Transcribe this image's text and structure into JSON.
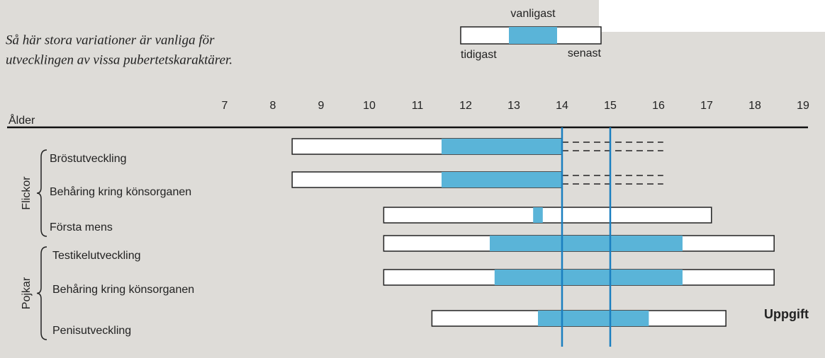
{
  "chart_data": {
    "type": "range",
    "title_lines": [
      "Så här stora variationer är vanliga för",
      "utvecklingen av vissa pubertetskaraktärer."
    ],
    "legend": {
      "common": "vanligast",
      "early": "tidigast",
      "late": "senast"
    },
    "x_label": "Ålder",
    "xlim": [
      7,
      19
    ],
    "xticks": [
      7,
      8,
      9,
      10,
      11,
      12,
      13,
      14,
      15,
      16,
      17,
      18,
      19
    ],
    "reference_lines": [
      14,
      15
    ],
    "common_color": "#5ab4d8",
    "line_color": "#1a7fc0",
    "groups": [
      {
        "name": "Flickor",
        "categories": [
          {
            "name": "Bröstutveckling",
            "earliest": 8.4,
            "common_start": 11.5,
            "common_end": 14,
            "latest": 14,
            "dashed_end": 16.1
          },
          {
            "name": "Behåring kring könsorganen",
            "earliest": 8.4,
            "common_start": 11.5,
            "common_end": 14,
            "latest": 14,
            "dashed_end": 16.1
          },
          {
            "name": "Första mens",
            "earliest": 10.3,
            "common_start": 13.4,
            "common_end": 13.6,
            "latest": 17.1
          }
        ]
      },
      {
        "name": "Pojkar",
        "categories": [
          {
            "name": "Testikelutveckling",
            "earliest": 10.3,
            "common_start": 12.5,
            "common_end": 16.5,
            "latest": 18.4
          },
          {
            "name": "Behåring kring könsorganen",
            "earliest": 10.3,
            "common_start": 12.6,
            "common_end": 16.5,
            "latest": 18.4
          },
          {
            "name": "Penisutveckling",
            "earliest": 11.3,
            "common_start": 13.5,
            "common_end": 15.8,
            "latest": 17.4
          }
        ]
      }
    ],
    "side_text": "Uppgift"
  }
}
